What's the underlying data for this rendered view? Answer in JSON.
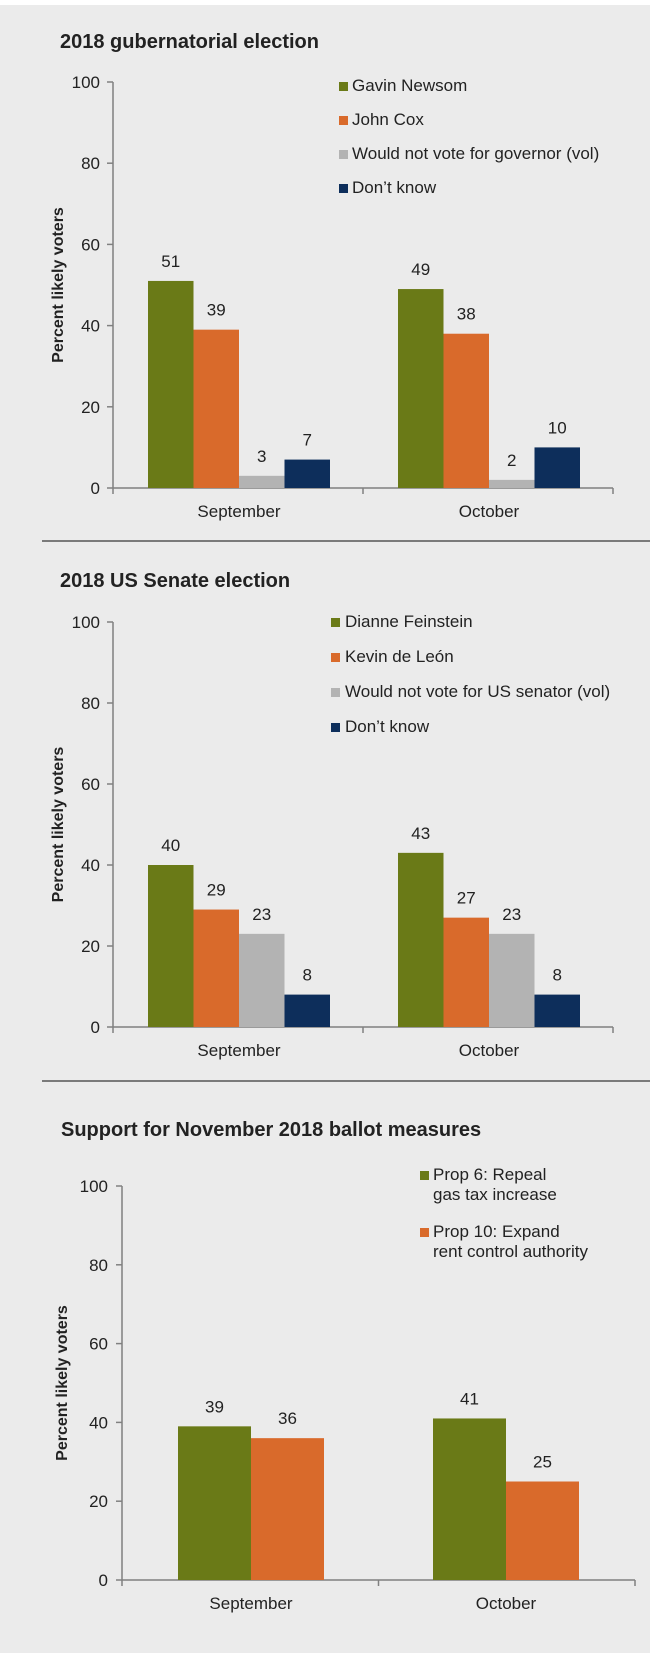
{
  "colors": {
    "background": "#ebebeb",
    "axis": "#808080",
    "divider": "#555555",
    "text": "#222222",
    "green": "#6a7a17",
    "orange": "#d96a2b",
    "gray": "#b3b3b3",
    "navy": "#0d2e5b"
  },
  "chart_data": [
    {
      "type": "bar",
      "title": "2018 gubernatorial election",
      "ylabel": "Percent likely voters",
      "xlabel": "",
      "ylim": [
        0,
        100
      ],
      "yticks": [
        "0",
        "20",
        "40",
        "60",
        "80",
        "100"
      ],
      "categories": [
        "September",
        "October"
      ],
      "legend_placement": "top-right",
      "grid": false,
      "series": [
        {
          "name": "Gavin Newsom",
          "color": "green",
          "values": [
            51,
            49
          ]
        },
        {
          "name": "John Cox",
          "color": "orange",
          "values": [
            39,
            38
          ]
        },
        {
          "name": "Would not vote for governor (vol)",
          "color": "gray",
          "values": [
            3,
            2
          ]
        },
        {
          "name": "Don’t know",
          "color": "navy",
          "values": [
            7,
            10
          ]
        }
      ]
    },
    {
      "type": "bar",
      "title": "2018 US Senate election",
      "ylabel": "Percent likely voters",
      "xlabel": "",
      "ylim": [
        0,
        100
      ],
      "yticks": [
        "0",
        "20",
        "40",
        "60",
        "80",
        "100"
      ],
      "categories": [
        "September",
        "October"
      ],
      "legend_placement": "top-right",
      "grid": false,
      "series": [
        {
          "name": "Dianne Feinstein",
          "color": "green",
          "values": [
            40,
            43
          ]
        },
        {
          "name": "Kevin de León",
          "color": "orange",
          "values": [
            29,
            27
          ]
        },
        {
          "name": "Would not vote for US senator (vol)",
          "color": "gray",
          "values": [
            23,
            23
          ]
        },
        {
          "name": "Don’t know",
          "color": "navy",
          "values": [
            8,
            8
          ]
        }
      ]
    },
    {
      "type": "bar",
      "title": "Support for November 2018 ballot measures",
      "ylabel": "Percent likely voters",
      "xlabel": "",
      "ylim": [
        0,
        100
      ],
      "yticks": [
        "0",
        "20",
        "40",
        "60",
        "80",
        "100"
      ],
      "categories": [
        "September",
        "October"
      ],
      "legend_placement": "top-right",
      "grid": false,
      "series": [
        {
          "name": "Prop 6: Repeal gas tax increase",
          "legend_lines": [
            "Prop 6: Repeal",
            "gas tax increase"
          ],
          "color": "green",
          "values": [
            39,
            41
          ]
        },
        {
          "name": "Prop 10: Expand rent control authority",
          "legend_lines": [
            "Prop 10: Expand",
            "rent control authority"
          ],
          "color": "orange",
          "values": [
            36,
            25
          ]
        }
      ]
    }
  ]
}
